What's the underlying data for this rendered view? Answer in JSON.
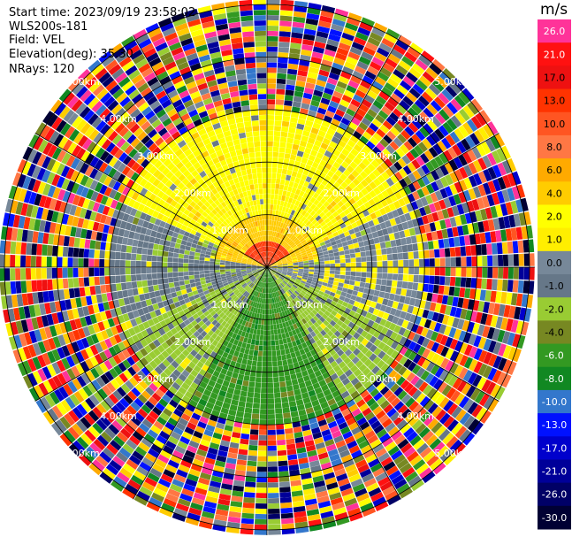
{
  "header": {
    "start_time": "Start time: 2023/09/19 23:58:02",
    "station": "WLS200s-181",
    "field": "Field: VEL",
    "elevation": "Elevation(deg): 35.30",
    "nrays": "NRays: 120"
  },
  "chart_data": {
    "type": "heatmap",
    "projection": "polar PPI",
    "field": "VEL",
    "nrays": 120,
    "range_rings_km": [
      1,
      2,
      3,
      4,
      5
    ],
    "ring_label_text": [
      "1.00km",
      "2.00km",
      "3.00km",
      "4.00km",
      "5.00km"
    ],
    "colorbar": {
      "title": "m/s",
      "ticks": [
        "26.0",
        "21.0",
        "17.0",
        "13.0",
        "10.0",
        "8.0",
        "6.0",
        "4.0",
        "2.0",
        "1.0",
        "0.0",
        "-1.0",
        "-2.0",
        "-4.0",
        "-6.0",
        "-8.0",
        "-10.0",
        "-13.0",
        "-17.0",
        "-21.0",
        "-26.0",
        "-30.0"
      ],
      "colors": [
        "#ff3399",
        "#ff1111",
        "#ee1111",
        "#ff3300",
        "#ff5522",
        "#ff7744",
        "#ffaa00",
        "#ffcc00",
        "#ffff00",
        "#ffee00",
        "#778899",
        "#667788",
        "#99cc33",
        "#778822",
        "#339922",
        "#118822",
        "#3377cc",
        "#0011ff",
        "#0000cc",
        "#000099",
        "#000066",
        "#000033"
      ]
    },
    "pattern_regions": [
      {
        "range_km": [
          0,
          0.5
        ],
        "azimuth_deg": [
          300,
          60
        ],
        "velocity": 13.0
      },
      {
        "range_km": [
          0,
          1.0
        ],
        "azimuth_deg": [
          280,
          80
        ],
        "velocity": 4.0
      },
      {
        "range_km": [
          0,
          3.0
        ],
        "azimuth_deg": [
          295,
          65
        ],
        "velocity": 2.0
      },
      {
        "range_km": [
          0,
          3.0
        ],
        "azimuth_deg": [
          65,
          115
        ],
        "velocity": 0.0
      },
      {
        "range_km": [
          0,
          3.0
        ],
        "azimuth_deg": [
          245,
          295
        ],
        "velocity": -1.0
      },
      {
        "range_km": [
          0,
          3.0
        ],
        "azimuth_deg": [
          115,
          150
        ],
        "velocity": -2.0
      },
      {
        "range_km": [
          0,
          3.0
        ],
        "azimuth_deg": [
          210,
          245
        ],
        "velocity": -2.0
      },
      {
        "range_km": [
          0,
          3.0
        ],
        "azimuth_deg": [
          150,
          210
        ],
        "velocity": -6.0
      },
      {
        "range_km": [
          3.0,
          5.5
        ],
        "azimuth_deg": [
          0,
          360
        ],
        "velocity": "folded/noisy (all bins)"
      }
    ],
    "grid": true,
    "legend": "right"
  }
}
